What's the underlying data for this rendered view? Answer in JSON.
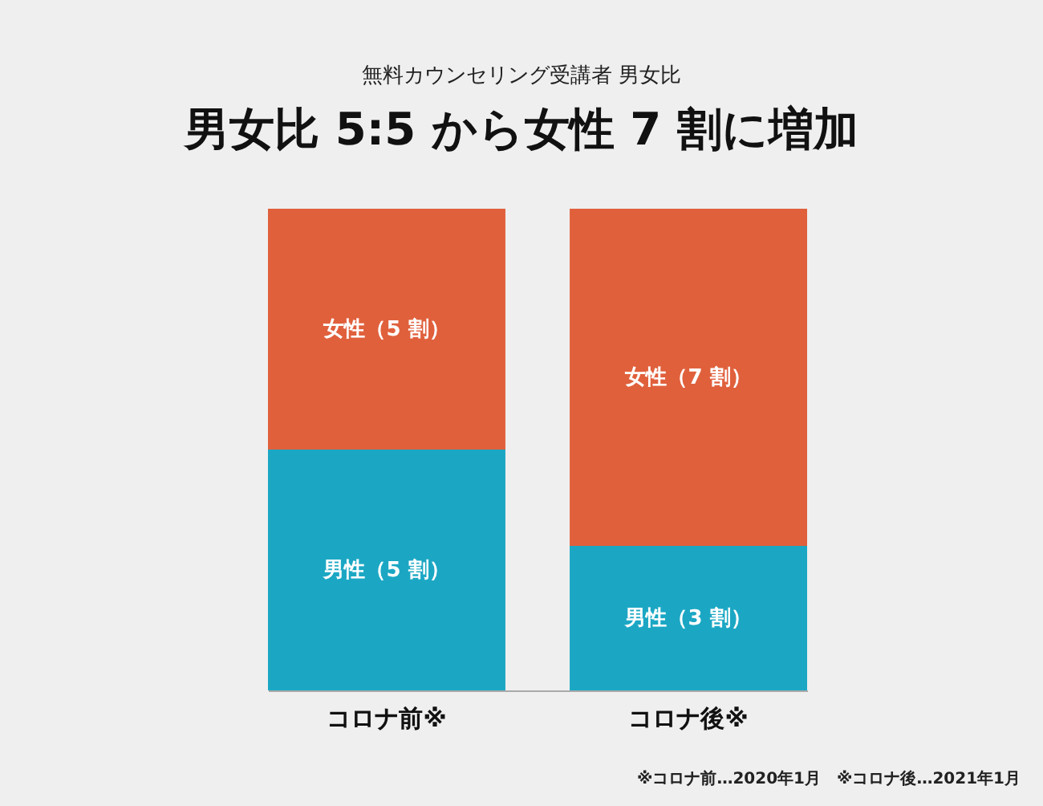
{
  "chart_data": {
    "type": "bar",
    "title": "男女比 5:5 から女性 7 割に増加",
    "subtitle": "無料カウンセリング受講者 男女比",
    "categories": [
      "コロナ前※",
      "コロナ後※"
    ],
    "stacked": true,
    "ylim": [
      0,
      10
    ],
    "tick_labels": "x",
    "legend": false,
    "series": [
      {
        "color": "#1ba7c4",
        "values": [
          5,
          3
        ],
        "value_labels": [
          "男性（5 割）",
          "男性（3 割）"
        ]
      },
      {
        "color": "#e0603c",
        "values": [
          5,
          7
        ],
        "value_labels": [
          "女性（5 割）",
          "女性（7 割）"
        ]
      }
    ],
    "annotations": [
      "※コロナ前…2020年1月　※コロナ後…2021年1月"
    ]
  }
}
